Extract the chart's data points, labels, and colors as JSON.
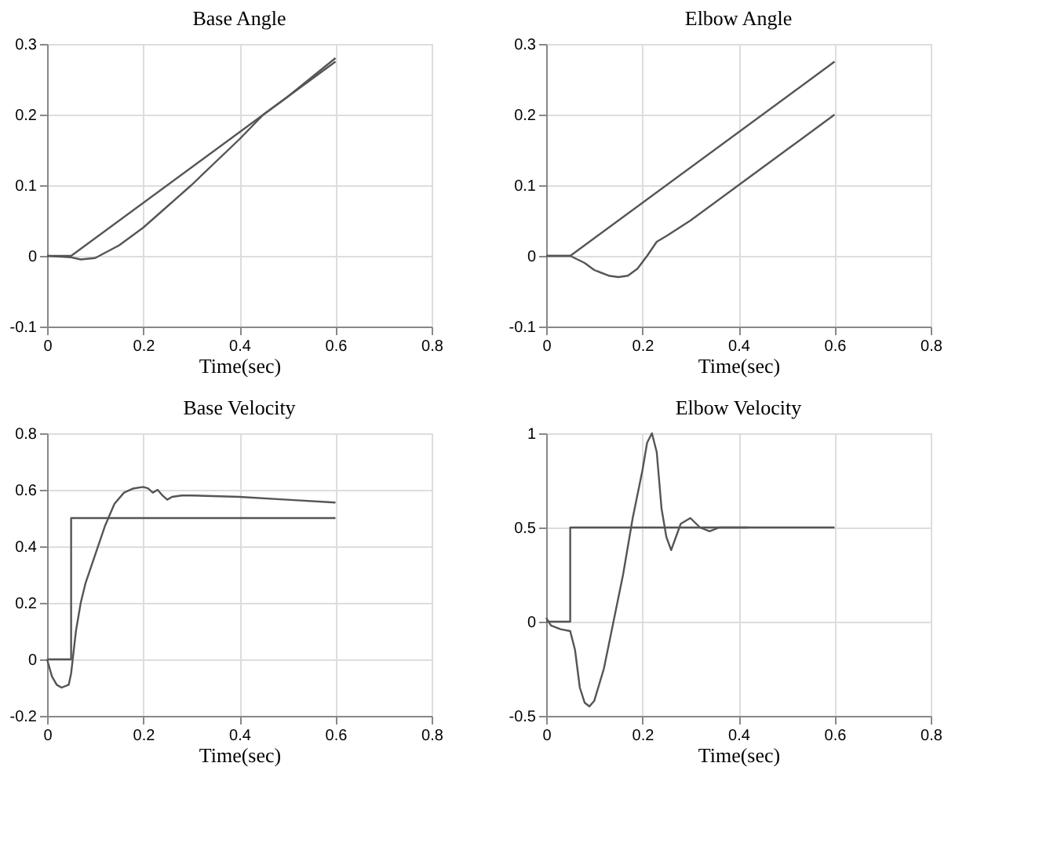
{
  "chart_data": [
    {
      "type": "line",
      "title": "Base Angle",
      "xlabel": "Time(sec)",
      "xlim": [
        0,
        0.8
      ],
      "xticks": [
        0,
        0.2,
        0.4,
        0.6,
        0.8
      ],
      "ylim": [
        -0.1,
        0.3
      ],
      "yticks": [
        -0.1,
        0,
        0.1,
        0.2,
        0.3
      ],
      "grid": true,
      "series": [
        {
          "color": "#555555",
          "x": [
            0,
            0.05,
            0.6
          ],
          "values": [
            0,
            0,
            0.275
          ]
        },
        {
          "color": "#555555",
          "x": [
            0,
            0.05,
            0.07,
            0.1,
            0.15,
            0.2,
            0.25,
            0.3,
            0.4,
            0.45,
            0.5,
            0.6
          ],
          "values": [
            0,
            -0.002,
            -0.005,
            -0.003,
            0.015,
            0.04,
            0.07,
            0.1,
            0.165,
            0.2,
            0.225,
            0.28
          ]
        }
      ]
    },
    {
      "type": "line",
      "title": "Elbow Angle",
      "xlabel": "Time(sec)",
      "xlim": [
        0,
        0.8
      ],
      "xticks": [
        0,
        0.2,
        0.4,
        0.6,
        0.8
      ],
      "ylim": [
        -0.1,
        0.3
      ],
      "yticks": [
        -0.1,
        0,
        0.1,
        0.2,
        0.3
      ],
      "grid": true,
      "series": [
        {
          "color": "#555555",
          "x": [
            0,
            0.05,
            0.6
          ],
          "values": [
            0,
            0,
            0.275
          ]
        },
        {
          "color": "#555555",
          "x": [
            0,
            0.05,
            0.08,
            0.1,
            0.13,
            0.15,
            0.17,
            0.19,
            0.21,
            0.23,
            0.25,
            0.3,
            0.4,
            0.5,
            0.6
          ],
          "values": [
            0,
            0,
            -0.01,
            -0.02,
            -0.028,
            -0.03,
            -0.028,
            -0.018,
            0,
            0.02,
            0.028,
            0.05,
            0.1,
            0.15,
            0.2
          ]
        }
      ]
    },
    {
      "type": "line",
      "title": "Base Velocity",
      "xlabel": "Time(sec)",
      "xlim": [
        0,
        0.8
      ],
      "xticks": [
        0,
        0.2,
        0.4,
        0.6,
        0.8
      ],
      "ylim": [
        -0.2,
        0.8
      ],
      "yticks": [
        -0.2,
        0,
        0.2,
        0.4,
        0.6,
        0.8
      ],
      "grid": true,
      "series": [
        {
          "color": "#555555",
          "x": [
            0,
            0.05,
            0.05,
            0.6
          ],
          "values": [
            0,
            0,
            0.5,
            0.5
          ]
        },
        {
          "color": "#555555",
          "x": [
            0,
            0.01,
            0.02,
            0.03,
            0.045,
            0.05,
            0.06,
            0.07,
            0.08,
            0.1,
            0.12,
            0.14,
            0.16,
            0.18,
            0.2,
            0.21,
            0.22,
            0.23,
            0.24,
            0.25,
            0.26,
            0.28,
            0.3,
            0.4,
            0.5,
            0.6
          ],
          "values": [
            0,
            -0.06,
            -0.09,
            -0.1,
            -0.09,
            -0.05,
            0.1,
            0.2,
            0.27,
            0.37,
            0.47,
            0.55,
            0.59,
            0.605,
            0.61,
            0.605,
            0.59,
            0.6,
            0.58,
            0.565,
            0.575,
            0.58,
            0.58,
            0.575,
            0.565,
            0.555
          ]
        }
      ]
    },
    {
      "type": "line",
      "title": "Elbow Velocity",
      "xlabel": "Time(sec)",
      "xlim": [
        0,
        0.8
      ],
      "xticks": [
        0,
        0.2,
        0.4,
        0.6,
        0.8
      ],
      "ylim": [
        -0.5,
        1
      ],
      "yticks": [
        -0.5,
        0,
        0.5,
        1
      ],
      "grid": true,
      "series": [
        {
          "color": "#555555",
          "x": [
            0,
            0.05,
            0.05,
            0.6
          ],
          "values": [
            0,
            0,
            0.5,
            0.5
          ]
        },
        {
          "color": "#555555",
          "x": [
            0,
            0.01,
            0.03,
            0.05,
            0.06,
            0.07,
            0.08,
            0.09,
            0.1,
            0.12,
            0.14,
            0.16,
            0.18,
            0.2,
            0.21,
            0.22,
            0.23,
            0.24,
            0.25,
            0.26,
            0.27,
            0.28,
            0.3,
            0.32,
            0.34,
            0.36,
            0.38,
            0.4,
            0.42
          ],
          "values": [
            0.02,
            -0.02,
            -0.04,
            -0.05,
            -0.15,
            -0.35,
            -0.43,
            -0.45,
            -0.42,
            -0.25,
            0,
            0.25,
            0.55,
            0.8,
            0.95,
            1.0,
            0.9,
            0.6,
            0.45,
            0.38,
            0.45,
            0.52,
            0.55,
            0.5,
            0.48,
            0.5,
            0.5,
            0.5,
            0.5
          ]
        }
      ]
    }
  ]
}
